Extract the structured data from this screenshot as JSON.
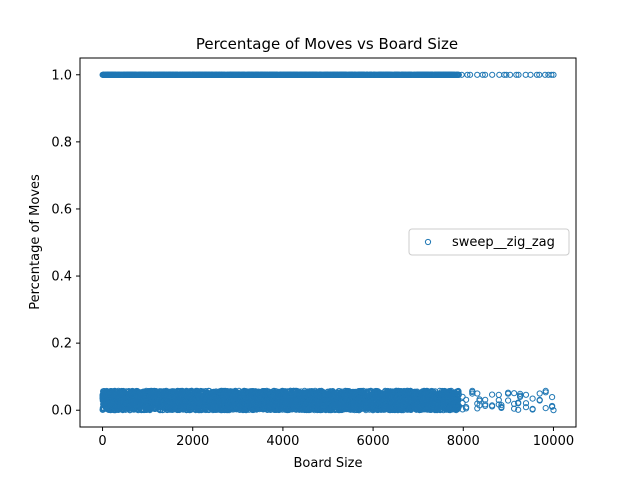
{
  "chart_data": {
    "type": "scatter",
    "title": "Percentage of Moves vs Board Size",
    "xlabel": "Board Size",
    "ylabel": "Percentage of Moves",
    "xlim": [
      -500,
      10500
    ],
    "ylim": [
      -0.05,
      1.05
    ],
    "xticks": [
      0,
      2000,
      4000,
      6000,
      8000,
      10000
    ],
    "yticks": [
      0.0,
      0.2,
      0.4,
      0.6,
      0.8,
      1.0
    ],
    "xtick_labels": [
      "0",
      "2000",
      "4000",
      "6000",
      "8000",
      "10000"
    ],
    "ytick_labels": [
      "0.0",
      "0.2",
      "0.4",
      "0.6",
      "0.8",
      "1.0"
    ],
    "legend_position": "center-right",
    "grid": false,
    "series": [
      {
        "name": "sweep__zig_zag",
        "color": "#1f77b4",
        "marker": "hollow-circle",
        "bands": [
          {
            "y_min": 1.0,
            "y_max": 1.0,
            "x_min": 0,
            "x_max": 10000,
            "dense_until": 7900
          },
          {
            "y_min": 0.0,
            "y_max": 0.058,
            "x_min": 0,
            "x_max": 10000,
            "dense_until": 7900
          }
        ]
      }
    ]
  }
}
